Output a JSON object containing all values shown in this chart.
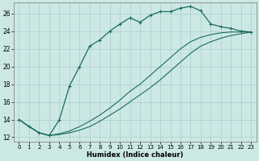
{
  "xlabel": "Humidex (Indice chaleur)",
  "xlim": [
    -0.5,
    23.5
  ],
  "ylim": [
    11.5,
    27.2
  ],
  "yticks": [
    12,
    14,
    16,
    18,
    20,
    22,
    24,
    26
  ],
  "xticks": [
    0,
    1,
    2,
    3,
    4,
    5,
    6,
    7,
    8,
    9,
    10,
    11,
    12,
    13,
    14,
    15,
    16,
    17,
    18,
    19,
    20,
    21,
    22,
    23
  ],
  "bg_color": "#cce8e4",
  "grid_color": "#aacccc",
  "line_color": "#1a6b5e",
  "line1_x": [
    0,
    1,
    2,
    3,
    4,
    5,
    6,
    7,
    8,
    9,
    10,
    11,
    12,
    13,
    14,
    15,
    16,
    17,
    18,
    19,
    20,
    21,
    22,
    23
  ],
  "line1_y": [
    14.0,
    13.2,
    12.5,
    12.2,
    14.0,
    17.8,
    20.0,
    22.3,
    23.0,
    24.0,
    24.8,
    25.5,
    25.0,
    25.8,
    26.2,
    26.2,
    26.6,
    26.8,
    26.3,
    24.8,
    24.5,
    24.3,
    24.0,
    23.9
  ],
  "line2_x": [
    0,
    1,
    2,
    3,
    4,
    5,
    6,
    7,
    8,
    9,
    10,
    11,
    12,
    13,
    14,
    15,
    16,
    17,
    18,
    19,
    20,
    21,
    22,
    23
  ],
  "line2_y": [
    14.0,
    13.2,
    12.5,
    12.2,
    12.3,
    12.5,
    12.8,
    13.2,
    13.8,
    14.5,
    15.2,
    16.0,
    16.8,
    17.6,
    18.5,
    19.5,
    20.5,
    21.5,
    22.3,
    22.8,
    23.2,
    23.5,
    23.7,
    23.9
  ],
  "line3_x": [
    0,
    1,
    2,
    3,
    4,
    5,
    6,
    7,
    8,
    9,
    10,
    11,
    12,
    13,
    14,
    15,
    16,
    17,
    18,
    19,
    20,
    21,
    22,
    23
  ],
  "line3_y": [
    14.0,
    13.2,
    12.5,
    12.2,
    12.4,
    12.7,
    13.2,
    13.8,
    14.5,
    15.3,
    16.2,
    17.2,
    18.0,
    19.0,
    20.0,
    21.0,
    22.0,
    22.8,
    23.3,
    23.6,
    23.8,
    23.9,
    23.9,
    23.9
  ]
}
